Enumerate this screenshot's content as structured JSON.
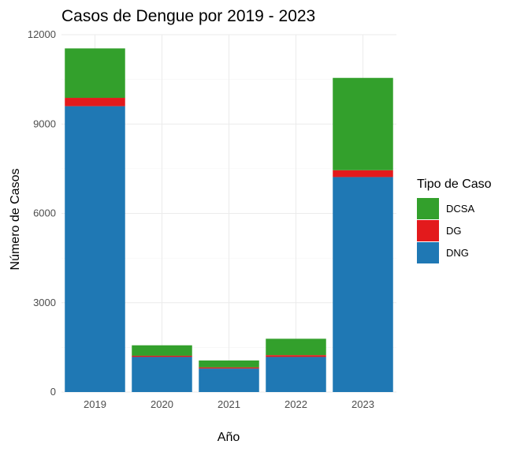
{
  "chart_data": {
    "type": "bar",
    "stacked": true,
    "title": "Casos de Dengue por 2019 - 2023",
    "xlabel": "Año",
    "ylabel": "Número de Casos",
    "categories": [
      "2019",
      "2020",
      "2021",
      "2022",
      "2023"
    ],
    "ylim": [
      0,
      12000
    ],
    "yticks": [
      0,
      3000,
      6000,
      9000,
      12000
    ],
    "grid": true,
    "legend": {
      "title": "Tipo de Caso",
      "placement": "right",
      "entries": [
        "DCSA",
        "DG",
        "DNG"
      ]
    },
    "series": [
      {
        "name": "DNG",
        "color": "#1f78b4",
        "values": [
          9600,
          1180,
          790,
          1180,
          7220
        ]
      },
      {
        "name": "DG",
        "color": "#e31a1c",
        "values": [
          280,
          40,
          40,
          60,
          230
        ]
      },
      {
        "name": "DCSA",
        "color": "#33a02c",
        "values": [
          1660,
          350,
          230,
          550,
          3100
        ]
      }
    ]
  }
}
